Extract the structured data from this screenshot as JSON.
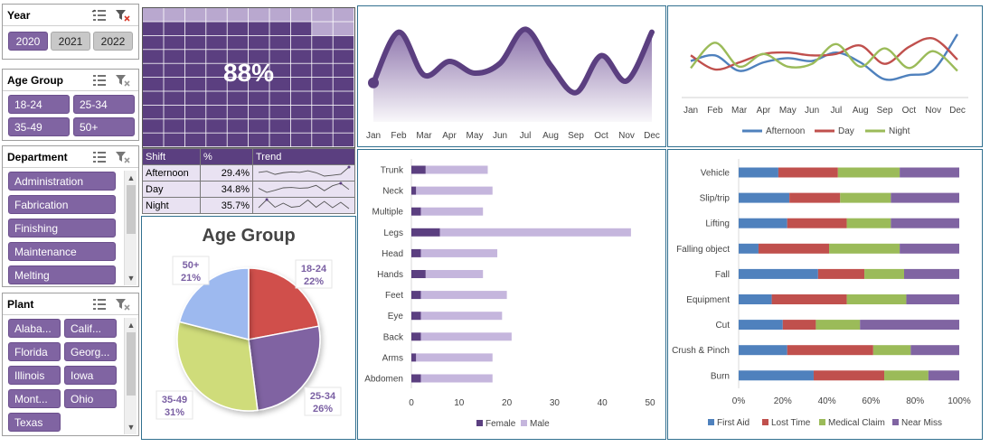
{
  "slicers": {
    "year": {
      "title": "Year",
      "items": [
        {
          "label": "2020",
          "selected": true
        },
        {
          "label": "2021",
          "selected": false
        },
        {
          "label": "2022",
          "selected": false
        }
      ]
    },
    "age_group": {
      "title": "Age Group",
      "items": [
        {
          "label": "18-24"
        },
        {
          "label": "25-34"
        },
        {
          "label": "35-49"
        },
        {
          "label": "50+"
        }
      ]
    },
    "department": {
      "title": "Department",
      "items": [
        {
          "label": "Administration"
        },
        {
          "label": "Fabrication"
        },
        {
          "label": "Finishing"
        },
        {
          "label": "Maintenance"
        },
        {
          "label": "Melting"
        }
      ]
    },
    "plant": {
      "title": "Plant",
      "items": [
        {
          "label": "Alaba..."
        },
        {
          "label": "Calif..."
        },
        {
          "label": "Florida"
        },
        {
          "label": "Georg..."
        },
        {
          "label": "Illinois"
        },
        {
          "label": "Iowa"
        },
        {
          "label": "Mont..."
        },
        {
          "label": "Ohio"
        },
        {
          "label": "Texas"
        }
      ]
    }
  },
  "icons": {
    "multi_select": "multi-select-icon",
    "clear_filter": "clear-filter-icon",
    "scroll_up": "scroll-up-icon",
    "scroll_down": "scroll-down-icon"
  },
  "waffle": {
    "percent_label": "88%",
    "value": 0.88,
    "fill_color": "#5b3f80",
    "empty_color": "#b9a8cf"
  },
  "shift_table": {
    "headers": [
      "Shift",
      "%",
      "Trend"
    ],
    "rows": [
      {
        "shift": "Afternoon",
        "pct": "29.4%"
      },
      {
        "shift": "Day",
        "pct": "34.8%"
      },
      {
        "shift": "Night",
        "pct": "35.7%"
      }
    ]
  },
  "colors": {
    "purple_dark": "#5b3f80",
    "purple": "#8064a2",
    "purple_light": "#c5b6dd",
    "blue": "#4f81bd",
    "red": "#c0504d",
    "green": "#9bbb59",
    "near_miss": "#8064a2",
    "pie_blue": "#9db9ef",
    "pie_yellow": "#cfdc7a",
    "pie_red": "#d0504b",
    "pie_purple": "#8064a2"
  },
  "chart_data": [
    {
      "type": "area",
      "x": [
        "Jan",
        "Feb",
        "Mar",
        "Apr",
        "May",
        "Jun",
        "Jul",
        "Aug",
        "Sep",
        "Oct",
        "Nov",
        "Dec"
      ],
      "values": [
        40,
        92,
        48,
        62,
        50,
        60,
        95,
        58,
        30,
        68,
        42,
        92
      ],
      "ylim": [
        0,
        100
      ],
      "grid": false
    },
    {
      "type": "line",
      "x": [
        "Jan",
        "Feb",
        "Mar",
        "Apr",
        "May",
        "Jun",
        "Jul",
        "Aug",
        "Sep",
        "Oct",
        "Nov",
        "Dec"
      ],
      "series": [
        {
          "name": "Afternoon",
          "values": [
            48,
            56,
            34,
            46,
            52,
            48,
            60,
            46,
            22,
            28,
            35,
            86
          ]
        },
        {
          "name": "Day",
          "values": [
            56,
            36,
            46,
            58,
            60,
            56,
            58,
            70,
            44,
            68,
            80,
            50
          ]
        },
        {
          "name": "Night",
          "values": [
            38,
            74,
            40,
            58,
            40,
            44,
            72,
            40,
            66,
            38,
            62,
            34
          ]
        }
      ],
      "ylim": [
        0,
        100
      ],
      "legend": "bottom"
    },
    {
      "type": "bar",
      "orientation": "horizontal",
      "stacked": true,
      "categories": [
        "Trunk",
        "Neck",
        "Multiple",
        "Legs",
        "Head",
        "Hands",
        "Feet",
        "Eye",
        "Back",
        "Arms",
        "Abdomen"
      ],
      "series": [
        {
          "name": "Female",
          "values": [
            3,
            1,
            2,
            6,
            2,
            3,
            2,
            2,
            2,
            1,
            2
          ]
        },
        {
          "name": "Male",
          "values": [
            13,
            16,
            13,
            40,
            16,
            12,
            18,
            17,
            19,
            16,
            15
          ]
        }
      ],
      "ticks": [
        "0",
        "10",
        "20",
        "30",
        "40",
        "50"
      ],
      "xlim": [
        0,
        50
      ],
      "legend": "bottom"
    },
    {
      "type": "bar",
      "orientation": "horizontal",
      "stacked": true,
      "percent": true,
      "categories": [
        "Vehicle",
        "Slip/trip",
        "Lifting",
        "Falling object",
        "Fall",
        "Equipment",
        "Cut",
        "Crush & Pinch",
        "Burn"
      ],
      "series": [
        {
          "name": "First Aid",
          "values": [
            18,
            23,
            22,
            9,
            36,
            15,
            20,
            22,
            34
          ]
        },
        {
          "name": "Lost Time",
          "values": [
            27,
            23,
            27,
            32,
            21,
            34,
            15,
            39,
            32
          ]
        },
        {
          "name": "Medical Claim",
          "values": [
            28,
            23,
            20,
            32,
            18,
            27,
            20,
            17,
            20
          ]
        },
        {
          "name": "Near Miss",
          "values": [
            27,
            31,
            31,
            27,
            25,
            24,
            45,
            22,
            14
          ]
        }
      ],
      "ticks": [
        "0%",
        "20%",
        "40%",
        "60%",
        "80%",
        "100%"
      ],
      "xlim": [
        0,
        100
      ],
      "legend": "bottom"
    },
    {
      "type": "pie",
      "title": "Age Group",
      "slices": [
        {
          "label": "18-24",
          "pct": "22%",
          "value": 22
        },
        {
          "label": "25-34",
          "pct": "26%",
          "value": 26
        },
        {
          "label": "35-49",
          "pct": "31%",
          "value": 31
        },
        {
          "label": "50+",
          "pct": "21%",
          "value": 21
        }
      ]
    }
  ]
}
